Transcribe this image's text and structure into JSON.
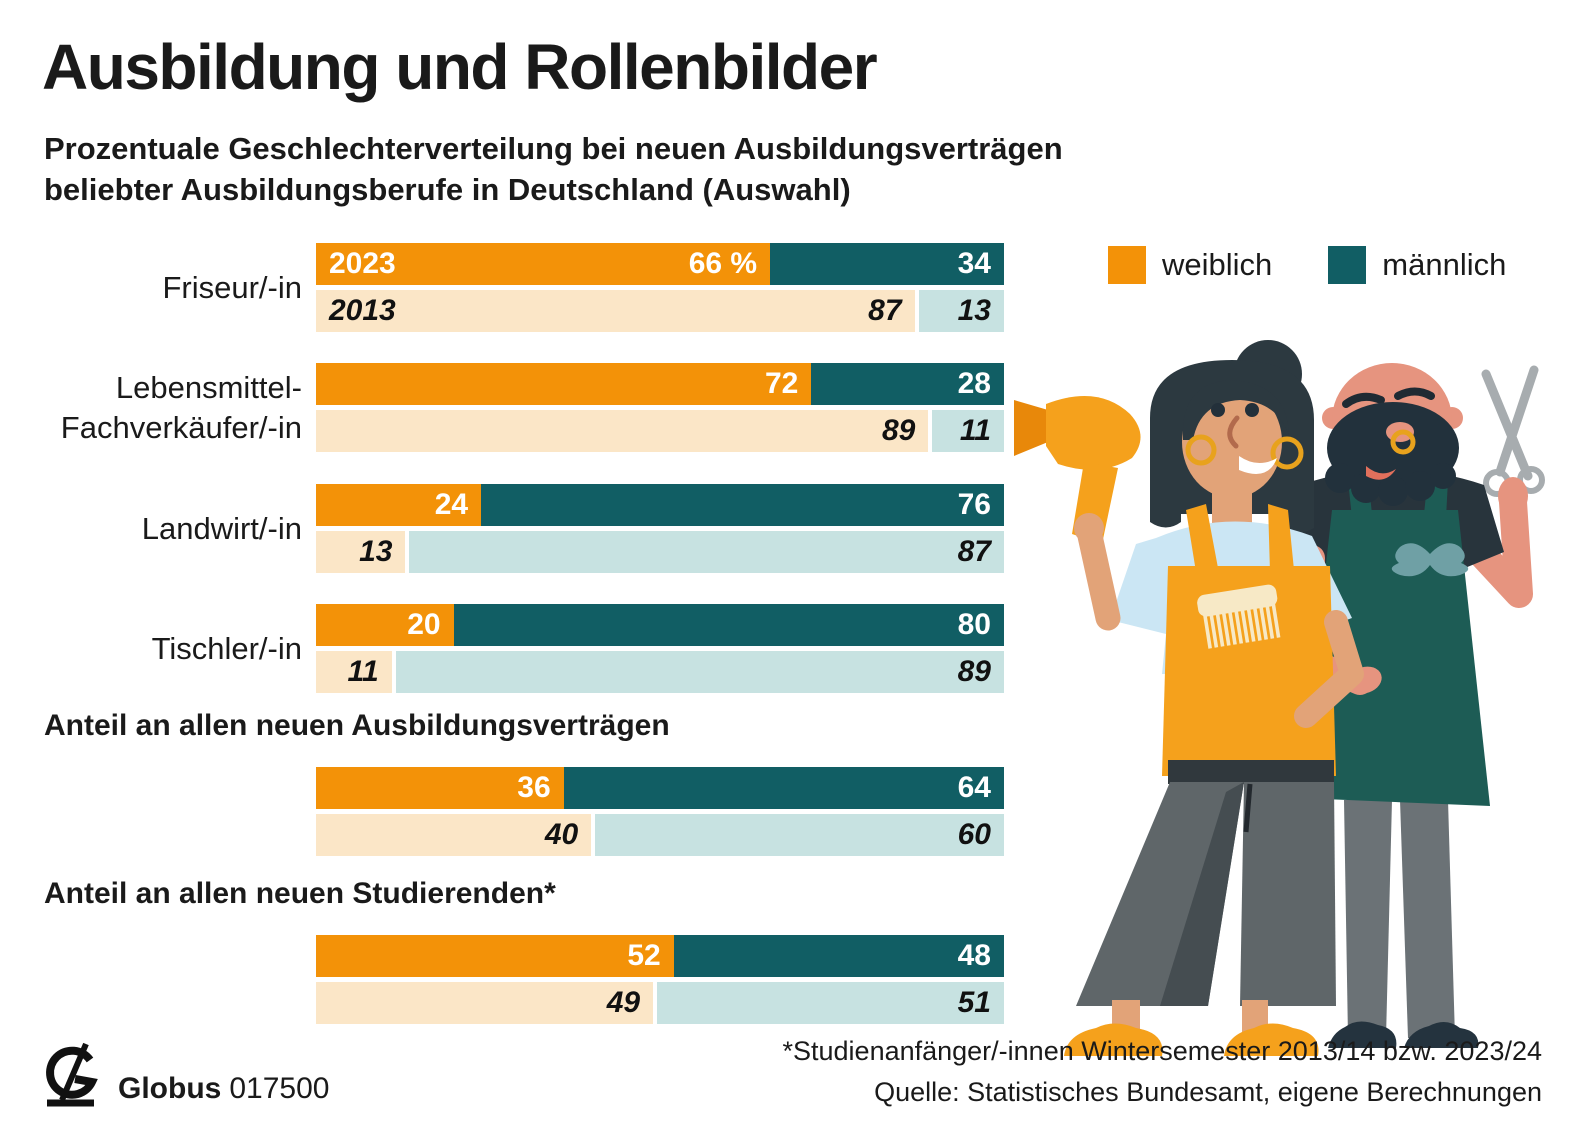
{
  "title": "Ausbildung und Rollenbilder",
  "subtitle": [
    "Prozentuale Geschlechterverteilung bei neuen Ausbildungsverträgen",
    "beliebter Ausbildungsberufe in Deutschland (Auswahl)"
  ],
  "legend": [
    {
      "label": "weiblich"
    },
    {
      "label": "männlich"
    }
  ],
  "colors": {
    "weiblich_2023": "#F39208",
    "weiblich_2013": "#FBE6C7",
    "maennlich_2023": "#115E64",
    "maennlich_2013": "#C7E2E1"
  },
  "sections": [
    {
      "heading": "Anteil an allen neuen Ausbildungsverträgen"
    },
    {
      "heading": "Anteil an allen neuen Studierenden*"
    }
  ],
  "footer": {
    "brand": "Globus",
    "brand_number": "017500",
    "footnote": "*Studienanfänger/-innen Wintersemester 2013/14 bzw. 2023/24",
    "source": "Quelle: Statistisches Bundesamt, eigene Berechnungen"
  },
  "chart_data": {
    "type": "bar",
    "orientation": "horizontal",
    "stacked_percent": true,
    "unit": "%",
    "max": 100,
    "series_names": [
      "weiblich",
      "männlich"
    ],
    "year_rows": [
      "2023",
      "2013"
    ],
    "groups": [
      {
        "label": "Friseur/-in",
        "label_lines": [
          "Friseur/-in",
          ""
        ],
        "y2023": {
          "year_label": "2023",
          "weiblich": 66,
          "maennlich": 34,
          "weiblich_label": "66 %",
          "maennlich_label": "34"
        },
        "y2013": {
          "year_label": "2013",
          "weiblich": 87,
          "maennlich": 13,
          "weiblich_label": "87",
          "maennlich_label": "13"
        }
      },
      {
        "label": "Lebensmittel-Fachverkäufer/-in",
        "label_lines": [
          "Lebensmittel-",
          "Fachverkäufer/-in"
        ],
        "y2023": {
          "weiblich": 72,
          "maennlich": 28,
          "weiblich_label": "72",
          "maennlich_label": "28"
        },
        "y2013": {
          "weiblich": 89,
          "maennlich": 11,
          "weiblich_label": "89",
          "maennlich_label": "11"
        }
      },
      {
        "label": "Landwirt/-in",
        "label_lines": [
          "Landwirt/-in",
          ""
        ],
        "y2023": {
          "weiblich": 24,
          "maennlich": 76,
          "weiblich_label": "24",
          "maennlich_label": "76"
        },
        "y2013": {
          "weiblich": 13,
          "maennlich": 87,
          "weiblich_label": "13",
          "maennlich_label": "87"
        }
      },
      {
        "label": "Tischler/-in",
        "label_lines": [
          "Tischler/-in",
          ""
        ],
        "y2023": {
          "weiblich": 20,
          "maennlich": 80,
          "weiblich_label": "20",
          "maennlich_label": "80"
        },
        "y2013": {
          "weiblich": 11,
          "maennlich": 89,
          "weiblich_label": "11",
          "maennlich_label": "89"
        }
      },
      {
        "label": "Anteil an allen neuen Ausbildungsverträgen",
        "label_lines": [
          "",
          ""
        ],
        "y2023": {
          "weiblich": 36,
          "maennlich": 64,
          "weiblich_label": "36",
          "maennlich_label": "64"
        },
        "y2013": {
          "weiblich": 40,
          "maennlich": 60,
          "weiblich_label": "40",
          "maennlich_label": "60"
        }
      },
      {
        "label": "Anteil an allen neuen Studierenden*",
        "label_lines": [
          "",
          ""
        ],
        "y2023": {
          "weiblich": 52,
          "maennlich": 48,
          "weiblich_label": "52",
          "maennlich_label": "48"
        },
        "y2013": {
          "weiblich": 49,
          "maennlich": 51,
          "weiblich_label": "49",
          "maennlich_label": "51"
        }
      }
    ]
  }
}
